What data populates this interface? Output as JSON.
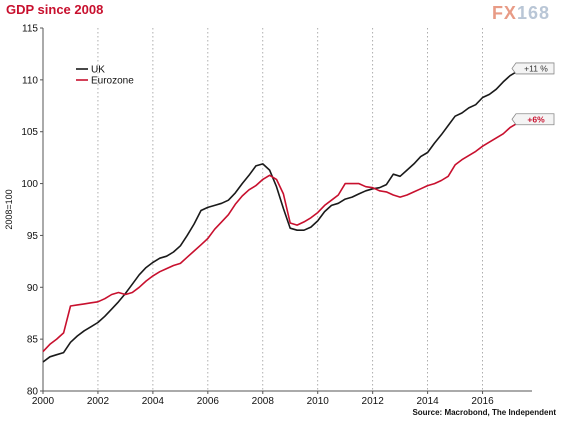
{
  "title": "GDP since 2008",
  "logo": {
    "prefix": "FX",
    "suffix": "168"
  },
  "source": "Source: Macrobond, The Independent",
  "colors": {
    "uk": "#1a1a1a",
    "eurozone": "#c8102e",
    "title": "#c8102e"
  },
  "chart_data": {
    "type": "line",
    "title": "GDP since 2008",
    "xlabel": "",
    "ylabel": "2008=100",
    "xlim": [
      2000,
      2017.8
    ],
    "ylim": [
      80,
      115
    ],
    "x_ticks": [
      "2000",
      "2002",
      "2004",
      "2006",
      "2008",
      "2010",
      "2012",
      "2014",
      "2016"
    ],
    "y_ticks": [
      "80",
      "85",
      "90",
      "95",
      "100",
      "105",
      "110",
      "115"
    ],
    "grid": "vertical dotted",
    "legend": "top-left",
    "series": [
      {
        "name": "UK",
        "color": "#1a1a1a",
        "callout": "+11 %",
        "points": [
          [
            2000.0,
            82.8
          ],
          [
            2000.25,
            83.3
          ],
          [
            2000.5,
            83.5
          ],
          [
            2000.75,
            83.7
          ],
          [
            2001.0,
            84.7
          ],
          [
            2001.25,
            85.3
          ],
          [
            2001.5,
            85.8
          ],
          [
            2001.75,
            86.2
          ],
          [
            2002.0,
            86.6
          ],
          [
            2002.25,
            87.2
          ],
          [
            2002.5,
            87.9
          ],
          [
            2002.75,
            88.6
          ],
          [
            2003.0,
            89.4
          ],
          [
            2003.25,
            90.3
          ],
          [
            2003.5,
            91.2
          ],
          [
            2003.75,
            91.9
          ],
          [
            2004.0,
            92.4
          ],
          [
            2004.25,
            92.8
          ],
          [
            2004.5,
            93.0
          ],
          [
            2004.75,
            93.4
          ],
          [
            2005.0,
            94.0
          ],
          [
            2005.25,
            95.0
          ],
          [
            2005.5,
            96.1
          ],
          [
            2005.75,
            97.4
          ],
          [
            2006.0,
            97.7
          ],
          [
            2006.25,
            97.9
          ],
          [
            2006.5,
            98.1
          ],
          [
            2006.75,
            98.4
          ],
          [
            2007.0,
            99.1
          ],
          [
            2007.25,
            100.0
          ],
          [
            2007.5,
            100.8
          ],
          [
            2007.75,
            101.7
          ],
          [
            2008.0,
            101.9
          ],
          [
            2008.25,
            101.3
          ],
          [
            2008.5,
            99.7
          ],
          [
            2008.75,
            97.6
          ],
          [
            2009.0,
            95.7
          ],
          [
            2009.25,
            95.5
          ],
          [
            2009.5,
            95.5
          ],
          [
            2009.75,
            95.8
          ],
          [
            2010.0,
            96.4
          ],
          [
            2010.25,
            97.3
          ],
          [
            2010.5,
            97.9
          ],
          [
            2010.75,
            98.1
          ],
          [
            2011.0,
            98.5
          ],
          [
            2011.25,
            98.7
          ],
          [
            2011.5,
            99.0
          ],
          [
            2011.75,
            99.3
          ],
          [
            2012.0,
            99.5
          ],
          [
            2012.25,
            99.6
          ],
          [
            2012.5,
            99.9
          ],
          [
            2012.75,
            100.9
          ],
          [
            2013.0,
            100.7
          ],
          [
            2013.25,
            101.3
          ],
          [
            2013.5,
            101.9
          ],
          [
            2013.75,
            102.6
          ],
          [
            2014.0,
            103.0
          ],
          [
            2014.25,
            103.9
          ],
          [
            2014.5,
            104.7
          ],
          [
            2014.75,
            105.6
          ],
          [
            2015.0,
            106.5
          ],
          [
            2015.25,
            106.8
          ],
          [
            2015.5,
            107.3
          ],
          [
            2015.75,
            107.6
          ],
          [
            2016.0,
            108.3
          ],
          [
            2016.25,
            108.6
          ],
          [
            2016.5,
            109.1
          ],
          [
            2016.75,
            109.8
          ],
          [
            2017.0,
            110.4
          ],
          [
            2017.25,
            110.8
          ],
          [
            2017.5,
            111.1
          ]
        ]
      },
      {
        "name": "Eurozone",
        "color": "#c8102e",
        "callout": "+6%",
        "points": [
          [
            2000.0,
            83.8
          ],
          [
            2000.25,
            84.5
          ],
          [
            2000.5,
            85.0
          ],
          [
            2000.75,
            85.6
          ],
          [
            2001.0,
            88.2
          ],
          [
            2001.25,
            88.3
          ],
          [
            2001.5,
            88.4
          ],
          [
            2001.75,
            88.5
          ],
          [
            2002.0,
            88.6
          ],
          [
            2002.25,
            88.9
          ],
          [
            2002.5,
            89.3
          ],
          [
            2002.75,
            89.5
          ],
          [
            2003.0,
            89.3
          ],
          [
            2003.25,
            89.5
          ],
          [
            2003.5,
            90.0
          ],
          [
            2003.75,
            90.6
          ],
          [
            2004.0,
            91.1
          ],
          [
            2004.25,
            91.5
          ],
          [
            2004.5,
            91.8
          ],
          [
            2004.75,
            92.1
          ],
          [
            2005.0,
            92.3
          ],
          [
            2005.25,
            92.9
          ],
          [
            2005.5,
            93.5
          ],
          [
            2005.75,
            94.1
          ],
          [
            2006.0,
            94.7
          ],
          [
            2006.25,
            95.6
          ],
          [
            2006.5,
            96.3
          ],
          [
            2006.75,
            97.0
          ],
          [
            2007.0,
            98.0
          ],
          [
            2007.25,
            98.8
          ],
          [
            2007.5,
            99.4
          ],
          [
            2007.75,
            99.8
          ],
          [
            2008.0,
            100.4
          ],
          [
            2008.25,
            100.8
          ],
          [
            2008.5,
            100.4
          ],
          [
            2008.75,
            99.0
          ],
          [
            2009.0,
            96.2
          ],
          [
            2009.25,
            96.0
          ],
          [
            2009.5,
            96.3
          ],
          [
            2009.75,
            96.7
          ],
          [
            2010.0,
            97.2
          ],
          [
            2010.25,
            97.9
          ],
          [
            2010.5,
            98.4
          ],
          [
            2010.75,
            98.9
          ],
          [
            2011.0,
            100.0
          ],
          [
            2011.25,
            100.0
          ],
          [
            2011.5,
            100.0
          ],
          [
            2011.75,
            99.7
          ],
          [
            2012.0,
            99.6
          ],
          [
            2012.25,
            99.3
          ],
          [
            2012.5,
            99.2
          ],
          [
            2012.75,
            98.9
          ],
          [
            2013.0,
            98.7
          ],
          [
            2013.25,
            98.9
          ],
          [
            2013.5,
            99.2
          ],
          [
            2013.75,
            99.5
          ],
          [
            2014.0,
            99.8
          ],
          [
            2014.25,
            100.0
          ],
          [
            2014.5,
            100.3
          ],
          [
            2014.75,
            100.7
          ],
          [
            2015.0,
            101.8
          ],
          [
            2015.25,
            102.3
          ],
          [
            2015.5,
            102.7
          ],
          [
            2015.75,
            103.1
          ],
          [
            2016.0,
            103.6
          ],
          [
            2016.25,
            104.0
          ],
          [
            2016.5,
            104.4
          ],
          [
            2016.75,
            104.8
          ],
          [
            2017.0,
            105.4
          ],
          [
            2017.25,
            105.8
          ],
          [
            2017.5,
            106.2
          ]
        ]
      }
    ]
  }
}
